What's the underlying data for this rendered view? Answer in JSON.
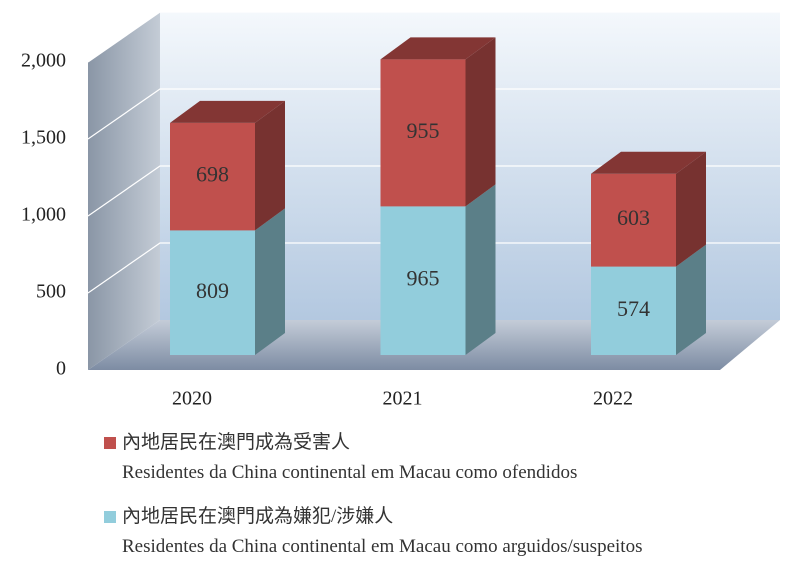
{
  "chart_data": {
    "type": "bar3d_stacked",
    "categories": [
      "2020",
      "2021",
      "2022"
    ],
    "series": [
      {
        "name": "內地居民在澳門成為嫌犯/涉嫌人\nResidentes da China continental em  Macau como arguidos/suspeitos",
        "color": "#92cddc",
        "values": [
          809,
          965,
          574
        ]
      },
      {
        "name": "內地居民在澳門成為受害人\nResidentes da China continental em  Macau como ofendidos",
        "color": "#c0504d",
        "values": [
          698,
          955,
          603
        ]
      }
    ],
    "ylim": [
      0,
      2000
    ],
    "yticks": [
      0,
      500,
      {
        "value": 1000,
        "label": "1,000"
      },
      {
        "value": 1500,
        "label": "1,500"
      },
      {
        "value": 2000,
        "label": "2,000"
      }
    ],
    "grid": true
  }
}
